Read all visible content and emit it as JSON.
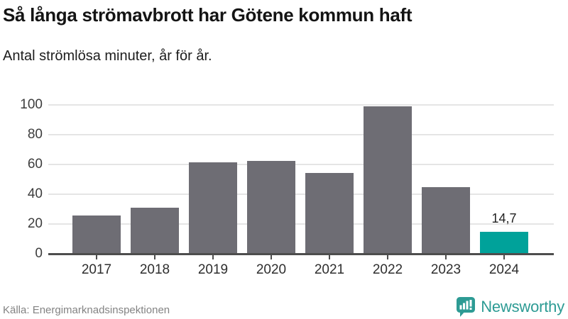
{
  "header": {
    "title": "Så långa strömavbrott har Götene kommun haft",
    "subtitle": "Antal strömlösa minuter, år för år."
  },
  "chart_data": {
    "type": "bar",
    "title": "Så långa strömavbrott har Götene kommun haft",
    "subtitle": "Antal strömlösa minuter, år för år.",
    "xlabel": "",
    "ylabel": "",
    "categories": [
      "2017",
      "2018",
      "2019",
      "2020",
      "2021",
      "2022",
      "2023",
      "2024"
    ],
    "values": [
      25.6,
      31.1,
      61.6,
      62.4,
      54.3,
      99,
      44.9,
      14.7
    ],
    "yticks": [
      0,
      20,
      40,
      60,
      80,
      100
    ],
    "ylim": [
      0,
      100
    ],
    "grid": true,
    "legend": "none",
    "highlight_index": 7,
    "annotations": [
      {
        "index": 7,
        "text": "14,7"
      }
    ],
    "bar_color": "#6e6d74",
    "highlight_color": "#00a29a",
    "grid_color": "#e5e5e5",
    "axis_color": "#4d4d4d"
  },
  "footer": {
    "source": "Källa: Energimarknadsinspektionen",
    "brand": "Newsworthy",
    "brand_color": "#2d9b94"
  }
}
